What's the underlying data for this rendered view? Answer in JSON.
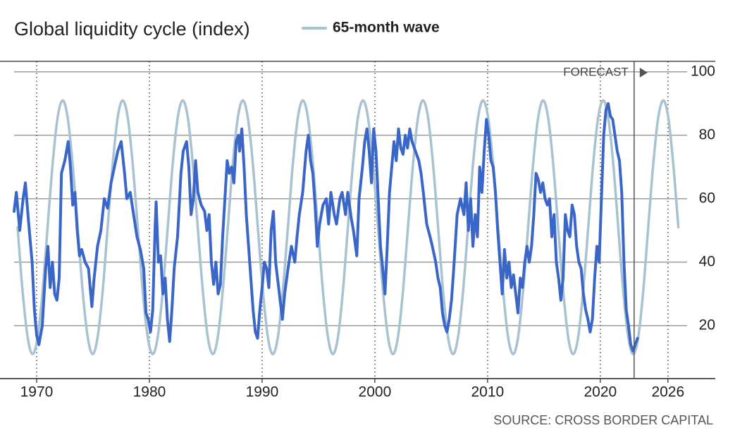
{
  "chart_data": {
    "type": "line",
    "title": "Global liquidity cycle (index)",
    "source": "SOURCE: CROSS BORDER CAPITAL",
    "forecast": {
      "label": "FORECAST",
      "x": 2023
    },
    "xlim": [
      1968,
      2030.2
    ],
    "ylim": [
      3.3,
      103.3
    ],
    "xticks": [
      1970,
      1980,
      1990,
      2000,
      2010,
      2020,
      2026
    ],
    "yticks": [
      20,
      40,
      60,
      80,
      100
    ],
    "grid": true,
    "series": [
      {
        "color": "#3a66c8",
        "x": [
          1968.0,
          1968.2,
          1968.5,
          1968.8,
          1969.0,
          1969.3,
          1969.6,
          1969.8,
          1970.0,
          1970.2,
          1970.5,
          1970.8,
          1971.0,
          1971.2,
          1971.4,
          1971.6,
          1971.8,
          1972.0,
          1972.2,
          1972.5,
          1972.8,
          1973.0,
          1973.2,
          1973.4,
          1973.6,
          1973.8,
          1974.0,
          1974.3,
          1974.6,
          1974.9,
          1975.1,
          1975.4,
          1975.7,
          1976.0,
          1976.3,
          1976.6,
          1976.9,
          1977.2,
          1977.5,
          1977.8,
          1978.0,
          1978.3,
          1978.6,
          1978.9,
          1979.2,
          1979.5,
          1979.7,
          1979.9,
          1980.1,
          1980.3,
          1980.5,
          1980.6,
          1980.8,
          1981.0,
          1981.2,
          1981.4,
          1981.6,
          1981.8,
          1982.0,
          1982.2,
          1982.5,
          1982.8,
          1983.0,
          1983.3,
          1983.5,
          1983.7,
          1983.9,
          1984.1,
          1984.3,
          1984.6,
          1984.9,
          1985.1,
          1985.3,
          1985.5,
          1985.7,
          1985.9,
          1986.1,
          1986.3,
          1986.5,
          1986.7,
          1986.9,
          1987.1,
          1987.3,
          1987.5,
          1987.7,
          1987.9,
          1988.0,
          1988.2,
          1988.4,
          1988.6,
          1988.8,
          1989.0,
          1989.2,
          1989.4,
          1989.6,
          1989.8,
          1990.0,
          1990.2,
          1990.4,
          1990.6,
          1990.8,
          1991.0,
          1991.2,
          1991.4,
          1991.6,
          1991.8,
          1992.0,
          1992.3,
          1992.6,
          1992.9,
          1993.1,
          1993.3,
          1993.6,
          1993.9,
          1994.1,
          1994.3,
          1994.5,
          1994.7,
          1994.9,
          1995.1,
          1995.4,
          1995.7,
          1995.9,
          1996.1,
          1996.4,
          1996.6,
          1996.9,
          1997.1,
          1997.4,
          1997.6,
          1997.9,
          1998.1,
          1998.4,
          1998.6,
          1998.9,
          1999.1,
          1999.3,
          1999.5,
          1999.7,
          1999.9,
          2000.1,
          2000.3,
          2000.5,
          2000.7,
          2000.9,
          2001.1,
          2001.3,
          2001.5,
          2001.7,
          2001.9,
          2002.1,
          2002.3,
          2002.5,
          2002.7,
          2002.9,
          2003.1,
          2003.3,
          2003.6,
          2003.9,
          2004.1,
          2004.3,
          2004.6,
          2004.9,
          2005.1,
          2005.4,
          2005.6,
          2005.8,
          2006.0,
          2006.2,
          2006.4,
          2006.6,
          2006.8,
          2007.0,
          2007.3,
          2007.6,
          2007.9,
          2008.1,
          2008.3,
          2008.5,
          2008.7,
          2008.9,
          2009.1,
          2009.3,
          2009.5,
          2009.7,
          2009.9,
          2010.1,
          2010.3,
          2010.5,
          2010.7,
          2010.9,
          2011.1,
          2011.3,
          2011.5,
          2011.7,
          2011.9,
          2012.1,
          2012.3,
          2012.5,
          2012.7,
          2012.9,
          2013.1,
          2013.3,
          2013.5,
          2013.7,
          2013.9,
          2014.1,
          2014.3,
          2014.5,
          2014.7,
          2014.9,
          2015.1,
          2015.3,
          2015.5,
          2015.7,
          2015.9,
          2016.1,
          2016.3,
          2016.5,
          2016.7,
          2016.9,
          2017.1,
          2017.3,
          2017.5,
          2017.7,
          2017.9,
          2018.1,
          2018.3,
          2018.5,
          2018.7,
          2018.9,
          2019.1,
          2019.3,
          2019.5,
          2019.7,
          2019.9,
          2020.1,
          2020.3,
          2020.5,
          2020.7,
          2020.9,
          2021.1,
          2021.3,
          2021.5,
          2021.7,
          2021.9,
          2022.1,
          2022.3,
          2022.5,
          2022.7,
          2022.9,
          2023.1,
          2023.3
        ],
        "values": [
          56,
          62,
          50,
          60,
          65,
          52,
          40,
          25,
          17,
          14,
          20,
          38,
          45,
          32,
          40,
          30,
          28,
          35,
          68,
          72,
          78,
          70,
          58,
          62,
          50,
          42,
          44,
          40,
          38,
          26,
          35,
          45,
          50,
          60,
          57,
          65,
          70,
          75,
          78,
          68,
          60,
          62,
          55,
          48,
          44,
          38,
          24,
          22,
          18,
          25,
          50,
          59,
          40,
          42,
          30,
          35,
          22,
          15,
          25,
          38,
          48,
          68,
          75,
          78,
          70,
          55,
          60,
          72,
          62,
          58,
          56,
          50,
          55,
          40,
          33,
          40,
          30,
          33,
          48,
          60,
          72,
          68,
          70,
          65,
          78,
          80,
          75,
          82,
          70,
          55,
          45,
          35,
          25,
          18,
          16,
          25,
          32,
          40,
          38,
          32,
          50,
          56,
          40,
          34,
          28,
          22,
          30,
          38,
          45,
          40,
          48,
          55,
          62,
          75,
          80,
          72,
          68,
          58,
          45,
          52,
          58,
          60,
          52,
          62,
          55,
          52,
          60,
          62,
          55,
          62,
          54,
          50,
          42,
          60,
          70,
          78,
          82,
          75,
          65,
          82,
          75,
          60,
          45,
          38,
          30,
          45,
          62,
          70,
          78,
          72,
          82,
          76,
          74,
          80,
          76,
          82,
          78,
          75,
          72,
          68,
          62,
          52,
          48,
          45,
          40,
          35,
          32,
          24,
          20,
          18,
          22,
          28,
          38,
          55,
          60,
          55,
          65,
          50,
          60,
          45,
          55,
          48,
          70,
          62,
          75,
          85,
          80,
          72,
          70,
          62,
          50,
          40,
          30,
          44,
          35,
          40,
          32,
          36,
          30,
          24,
          35,
          32,
          40,
          45,
          40,
          45,
          55,
          68,
          66,
          62,
          65,
          60,
          58,
          60,
          48,
          55,
          40,
          35,
          28,
          35,
          55,
          50,
          48,
          58,
          55,
          45,
          40,
          38,
          30,
          25,
          22,
          18,
          22,
          35,
          45,
          40,
          60,
          80,
          88,
          90,
          86,
          85,
          80,
          75,
          72,
          62,
          40,
          25,
          20,
          14,
          12,
          14,
          16
        ]
      },
      {
        "name": "65-month wave",
        "color": "#a8c2d2",
        "x": [
          1968.31,
          1968.75,
          1969.2,
          1969.64,
          1970.09,
          1970.53,
          1970.97,
          1971.42,
          1971.86,
          1972.31,
          1972.75,
          1973.19,
          1973.64,
          1974.08,
          1974.53,
          1974.97,
          1975.41,
          1975.86,
          1976.3,
          1976.75,
          1977.19,
          1977.63,
          1978.08,
          1978.52,
          1978.97,
          1979.41,
          1979.85,
          1980.3,
          1980.74,
          1981.19,
          1981.63,
          1982.07,
          1982.52,
          1982.96,
          1983.41,
          1983.85,
          1984.29,
          1984.74,
          1985.18,
          1985.63,
          1986.07,
          1986.51,
          1986.96,
          1987.4,
          1987.85,
          1988.29,
          1988.73,
          1989.18,
          1989.62,
          1990.07,
          1990.51,
          1990.95,
          1991.4,
          1991.84,
          1992.29,
          1992.73,
          1993.17,
          1993.62,
          1994.06,
          1994.51,
          1994.95,
          1995.39,
          1995.84,
          1996.28,
          1996.73,
          1997.17,
          1997.61,
          1998.06,
          1998.5,
          1998.95,
          1999.39,
          1999.83,
          2000.28,
          2000.72,
          2001.17,
          2001.61,
          2002.05,
          2002.5,
          2002.94,
          2003.39,
          2003.83,
          2004.27,
          2004.72,
          2005.16,
          2005.61,
          2006.05,
          2006.49,
          2006.94,
          2007.38,
          2007.83,
          2008.27,
          2008.71,
          2009.16,
          2009.6,
          2010.05,
          2010.49,
          2010.93,
          2011.38,
          2011.82,
          2012.27,
          2012.71,
          2013.15,
          2013.6,
          2014.04,
          2014.49,
          2014.93,
          2015.37,
          2015.82,
          2016.26,
          2016.71,
          2017.15,
          2017.59,
          2018.04,
          2018.48,
          2018.93,
          2019.37,
          2019.81,
          2020.26,
          2020.7,
          2021.15,
          2021.59,
          2022.03,
          2022.48,
          2022.92,
          2023.37,
          2023.81,
          2024.25,
          2024.7,
          2025.14,
          2025.59,
          2026.03,
          2026.47,
          2026.92
        ],
        "values": [
          51,
          31,
          16.4,
          11,
          16.4,
          31,
          51,
          71,
          85.6,
          91,
          85.6,
          71,
          51,
          31,
          16.4,
          11,
          16.4,
          31,
          51,
          71,
          85.6,
          91,
          85.6,
          71,
          51,
          31,
          16.4,
          11,
          16.4,
          31,
          51,
          71,
          85.6,
          91,
          85.6,
          71,
          51,
          31,
          16.4,
          11,
          16.4,
          31,
          51,
          71,
          85.6,
          91,
          85.6,
          71,
          51,
          31,
          16.4,
          11,
          16.4,
          31,
          51,
          71,
          85.6,
          91,
          85.6,
          71,
          51,
          31,
          16.4,
          11,
          16.4,
          31,
          51,
          71,
          85.6,
          91,
          85.6,
          71,
          51,
          31,
          16.4,
          11,
          16.4,
          31,
          51,
          71,
          85.6,
          91,
          85.6,
          71,
          51,
          31,
          16.4,
          11,
          16.4,
          31,
          51,
          71,
          85.6,
          91,
          85.6,
          71,
          51,
          31,
          16.4,
          11,
          16.4,
          31,
          51,
          71,
          85.6,
          91,
          85.6,
          71,
          51,
          31,
          16.4,
          11,
          16.4,
          31,
          51,
          71,
          85.6,
          91,
          85.6,
          71,
          51,
          31,
          16.4,
          11,
          16.4,
          31,
          51,
          71,
          85.6,
          91,
          85.6,
          71,
          51
        ]
      }
    ]
  }
}
